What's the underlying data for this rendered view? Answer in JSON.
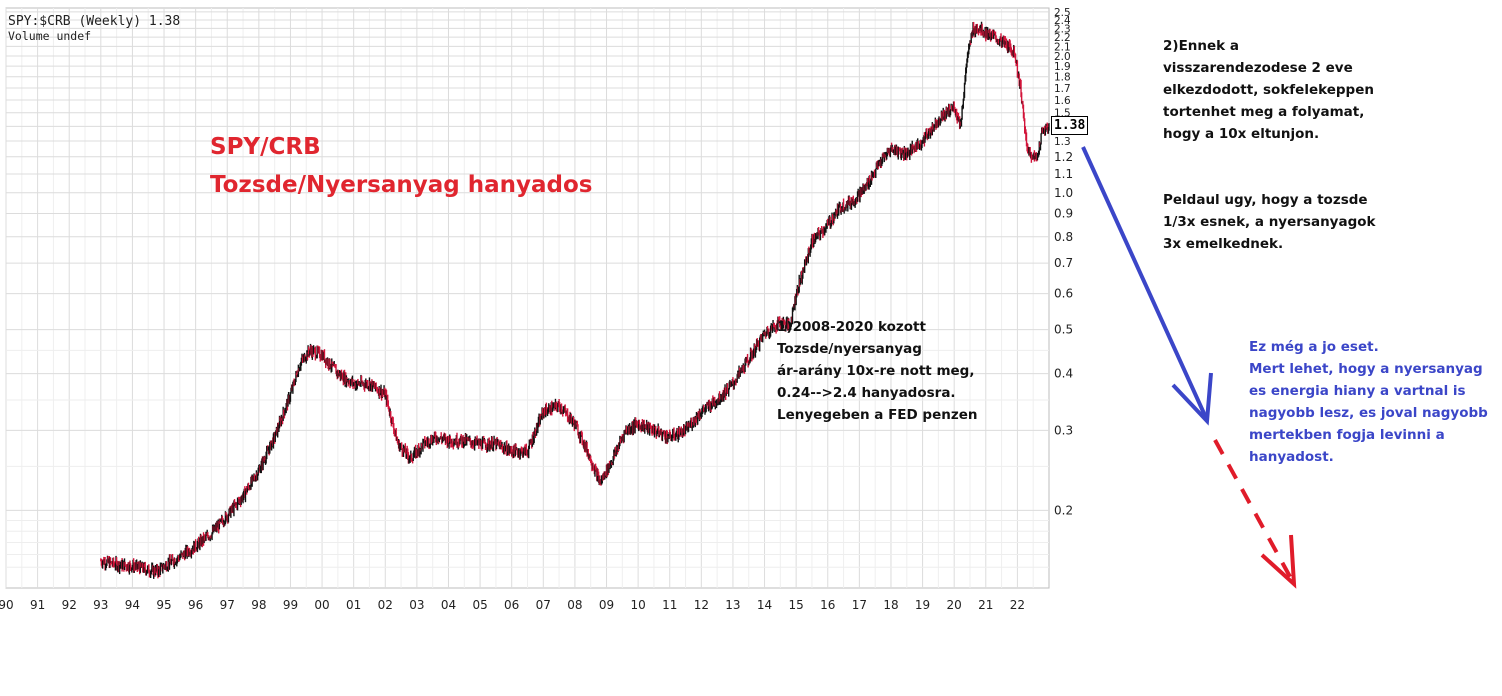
{
  "header": {
    "symbol_line": "SPY:$CRB (Weekly) 1.38",
    "volume_line": "Volume undef"
  },
  "annotations": {
    "title_line1": "SPY/CRB",
    "title_line2": "Tozsde/Nyersanyag hanyados",
    "note1": "1)2008-2020 kozott\nTozsde/nyersanyag\nár-arány 10x-re nott meg,\n0.24-->2.4 hanyadosra.\nLenyegeben a FED penzen",
    "note2": "2)Ennek  a\nvisszarendezodese 2 eve\nelkezdodott, sokfelekeppen\ntortenhet meg a folyamat,\nhogy a  10x eltunjon.",
    "note3": "Peldaul ugy, hogy a tozsde\n1/3x esnek, a nyersanyagok\n3x emelkednek.",
    "note4": "Ez még a jo eset.\nMert lehet, hogy a nyersanyag\nes energia hiany a vartnal is\nnagyobb lesz, es joval nagyobb\nmertekben fogja levinni a\nhanyadost.",
    "last_value": "1.38"
  },
  "colors": {
    "up_bar": "#111111",
    "down_bar": "#d2143a",
    "title": "#e0262f",
    "blue_arrow": "#3b46c8",
    "red_dashed_arrow": "#e01c2a"
  },
  "chart_data": {
    "type": "line",
    "title": "SPY:$CRB (Weekly) 1.38",
    "subtitle": "Volume undef",
    "xlabel": "",
    "ylabel": "",
    "y_scale": "log",
    "ylim": [
      0.135,
      2.55
    ],
    "xlim": [
      1990,
      2023
    ],
    "grid": true,
    "x_ticks": [
      "90",
      "91",
      "92",
      "93",
      "94",
      "95",
      "96",
      "97",
      "98",
      "99",
      "00",
      "01",
      "02",
      "03",
      "04",
      "05",
      "06",
      "07",
      "08",
      "09",
      "10",
      "11",
      "12",
      "13",
      "14",
      "15",
      "16",
      "17",
      "18",
      "19",
      "20",
      "21",
      "22"
    ],
    "y_ticks": [
      "2.5",
      "2.4",
      "2.3",
      "2.2",
      "2.1",
      "2.0",
      "1.9",
      "1.8",
      "1.7",
      "1.6",
      "1.5",
      "1.4",
      "1.3",
      "1.2",
      "1.1",
      "1.0",
      "0.9",
      "0.8",
      "0.7",
      "0.6",
      "0.5",
      "0.4",
      "0.3",
      "0.2"
    ],
    "series": [
      {
        "x": [
          1993.0,
          1993.5,
          1994.0,
          1994.5,
          1994.8,
          1995.0,
          1995.5,
          1996.0,
          1996.5,
          1997.0,
          1997.5,
          1998.0,
          1998.5,
          1998.8,
          1999.0,
          1999.3,
          1999.6,
          2000.0,
          2000.5,
          2001.0,
          2001.5,
          2002.0,
          2002.4,
          2002.8,
          2003.2,
          2003.6,
          2004.0,
          2004.5,
          2005.0,
          2005.5,
          2006.0,
          2006.5,
          2007.0,
          2007.5,
          2008.0,
          2008.4,
          2008.8,
          2009.2,
          2009.6,
          2010.0,
          2010.5,
          2011.0,
          2011.5,
          2012.0,
          2012.5,
          2013.0,
          2013.5,
          2014.0,
          2014.5,
          2014.8,
          2015.0,
          2015.5,
          2016.0,
          2016.4,
          2016.8,
          2017.2,
          2017.6,
          2018.0,
          2018.5,
          2019.0,
          2019.5,
          2020.0,
          2020.2,
          2020.4,
          2020.6,
          2020.8,
          2021.0,
          2021.5,
          2021.9,
          2022.1,
          2022.3,
          2022.6,
          2022.8,
          2023.0
        ],
        "values": [
          0.155,
          0.152,
          0.151,
          0.148,
          0.147,
          0.151,
          0.158,
          0.167,
          0.178,
          0.195,
          0.215,
          0.245,
          0.29,
          0.33,
          0.36,
          0.42,
          0.45,
          0.44,
          0.4,
          0.38,
          0.38,
          0.36,
          0.28,
          0.26,
          0.28,
          0.29,
          0.285,
          0.285,
          0.28,
          0.28,
          0.27,
          0.27,
          0.33,
          0.34,
          0.31,
          0.27,
          0.23,
          0.26,
          0.3,
          0.31,
          0.3,
          0.29,
          0.3,
          0.33,
          0.35,
          0.38,
          0.43,
          0.49,
          0.52,
          0.51,
          0.6,
          0.78,
          0.85,
          0.93,
          0.96,
          1.03,
          1.15,
          1.25,
          1.22,
          1.3,
          1.45,
          1.55,
          1.4,
          1.95,
          2.3,
          2.3,
          2.25,
          2.15,
          2.05,
          1.7,
          1.25,
          1.18,
          1.38,
          1.38
        ]
      }
    ]
  }
}
